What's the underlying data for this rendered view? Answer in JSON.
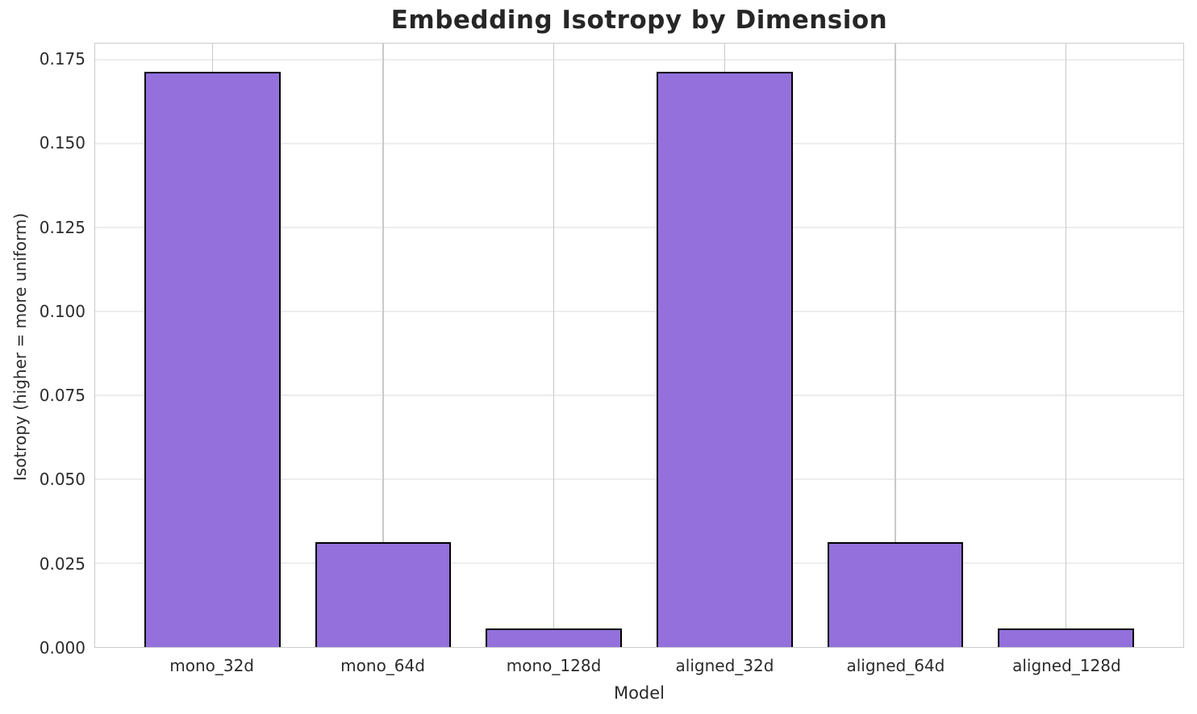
{
  "chart_data": {
    "type": "bar",
    "title": "Embedding Isotropy by Dimension",
    "xlabel": "Model",
    "ylabel": "Isotropy (higher = more uniform)",
    "categories": [
      "mono_32d",
      "mono_64d",
      "mono_128d",
      "aligned_32d",
      "aligned_64d",
      "aligned_128d"
    ],
    "values": [
      0.1714,
      0.0312,
      0.0055,
      0.1714,
      0.0312,
      0.0055
    ],
    "yticks": [
      0.0,
      0.025,
      0.05,
      0.075,
      0.1,
      0.125,
      0.15,
      0.175
    ],
    "ytick_labels": [
      "0.000",
      "0.025",
      "0.050",
      "0.075",
      "0.100",
      "0.125",
      "0.150",
      "0.175"
    ],
    "ylim": [
      0,
      0.1798
    ],
    "grid": "both",
    "legend": "none",
    "colors": {
      "bar_fill": "#9370db",
      "bar_edge": "#000000",
      "grid_horizontal": "#ededed",
      "grid_vertical": "#c9c9c9",
      "spine": "#cccccc",
      "text": "#2b2b2b",
      "title": "#262626"
    }
  }
}
